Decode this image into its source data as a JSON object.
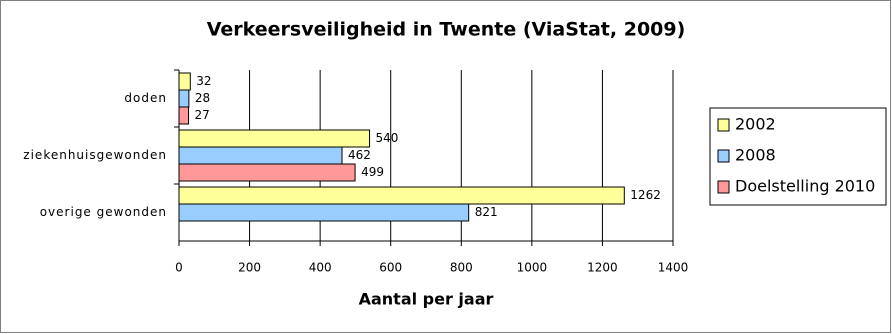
{
  "chart_data": {
    "type": "hbar",
    "title": "Verkeersveiligheid in Twente (ViaStat, 2009)",
    "x_label": "Aantal per jaar",
    "categories": [
      "doden",
      "ziekenhuisgewonden",
      "overige gewonden"
    ],
    "series": [
      {
        "name": "2002",
        "color": "#ffff99",
        "values": [
          32,
          540,
          1262
        ]
      },
      {
        "name": "2008",
        "color": "#99ccff",
        "values": [
          28,
          462,
          821
        ]
      },
      {
        "name": "Doelstelling 2010",
        "color": "#ff9999",
        "values": [
          27,
          499,
          null
        ]
      }
    ],
    "xlim": [
      0,
      1400
    ],
    "xticks": [
      0,
      200,
      400,
      600,
      800,
      1000,
      1200,
      1400
    ],
    "grid": true,
    "legend": "right"
  }
}
